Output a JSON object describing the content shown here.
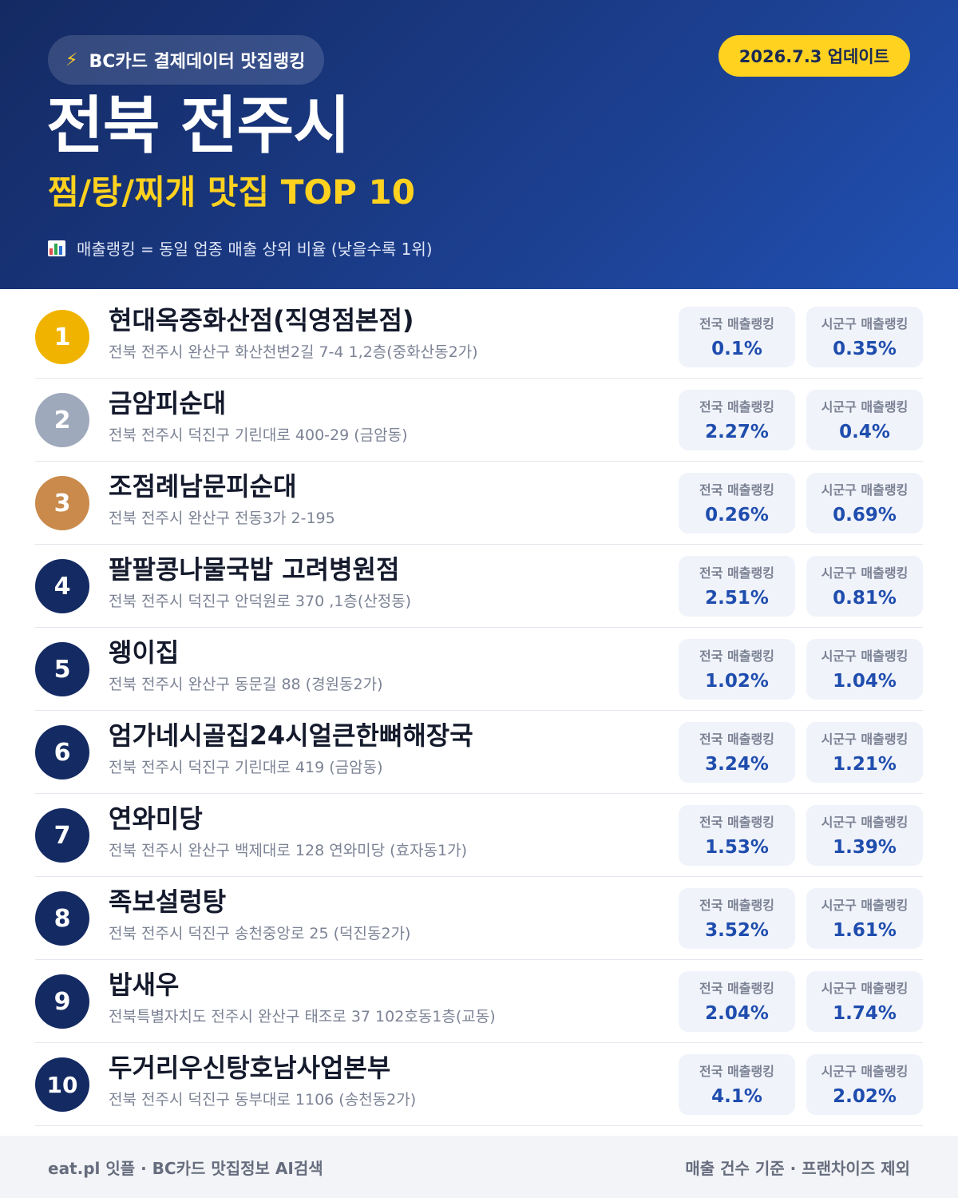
{
  "header": {
    "source_label": "BC카드 결제데이터 맛집랭킹",
    "update_label": "2026.7.3 업데이트",
    "region_title": "전북 전주시",
    "category_title": "찜/탕/찌개 맛집 TOP 10",
    "legend_note": "매출랭킹 = 동일 업종 매출 상위 비율 (낮을수록 1위)"
  },
  "colors": {
    "gold": "#f0b400",
    "silver": "#9fa9bc",
    "bronze": "#c98a4b",
    "navy": "#142a63",
    "accent_yellow": "#ffd21f",
    "value_blue": "#1f4dae"
  },
  "labels": {
    "national": "전국 매출랭킹",
    "local": "시군구 매출랭킹"
  },
  "rankings": [
    {
      "rank": "1",
      "name": "현대옥중화산점(직영점본점)",
      "address": "전북 전주시 완산구 화산천변2길 7-4 1,2층(중화산동2가)",
      "national": "0.1%",
      "local": "0.35%"
    },
    {
      "rank": "2",
      "name": "금암피순대",
      "address": "전북 전주시 덕진구 기린대로 400-29 (금암동)",
      "national": "2.27%",
      "local": "0.4%"
    },
    {
      "rank": "3",
      "name": "조점례남문피순대",
      "address": "전북 전주시 완산구 전동3가 2-195",
      "national": "0.26%",
      "local": "0.69%"
    },
    {
      "rank": "4",
      "name": "팔팔콩나물국밥 고려병원점",
      "address": "전북 전주시 덕진구 안덕원로 370 ,1층(산정동)",
      "national": "2.51%",
      "local": "0.81%"
    },
    {
      "rank": "5",
      "name": "왱이집",
      "address": "전북 전주시 완산구 동문길 88 (경원동2가)",
      "national": "1.02%",
      "local": "1.04%"
    },
    {
      "rank": "6",
      "name": "엄가네시골집24시얼큰한뼈해장국",
      "address": "전북 전주시 덕진구 기린대로 419 (금암동)",
      "national": "3.24%",
      "local": "1.21%"
    },
    {
      "rank": "7",
      "name": "연와미당",
      "address": "전북 전주시 완산구 백제대로 128 연와미당 (효자동1가)",
      "national": "1.53%",
      "local": "1.39%"
    },
    {
      "rank": "8",
      "name": "족보설렁탕",
      "address": "전북 전주시 덕진구 송천중앙로 25 (덕진동2가)",
      "national": "3.52%",
      "local": "1.61%"
    },
    {
      "rank": "9",
      "name": "밥새우",
      "address": "전북특별자치도 전주시 완산구 태조로 37 102호동1층(교동)",
      "national": "2.04%",
      "local": "1.74%"
    },
    {
      "rank": "10",
      "name": "두거리우신탕호남사업본부",
      "address": "전북 전주시 덕진구 동부대로 1106 (송천동2가)",
      "national": "4.1%",
      "local": "2.02%"
    }
  ],
  "footer": {
    "left": "eat.pl 잇플 · BC카드 맛집정보 AI검색",
    "right": "매출 건수 기준 · 프랜차이즈 제외"
  }
}
